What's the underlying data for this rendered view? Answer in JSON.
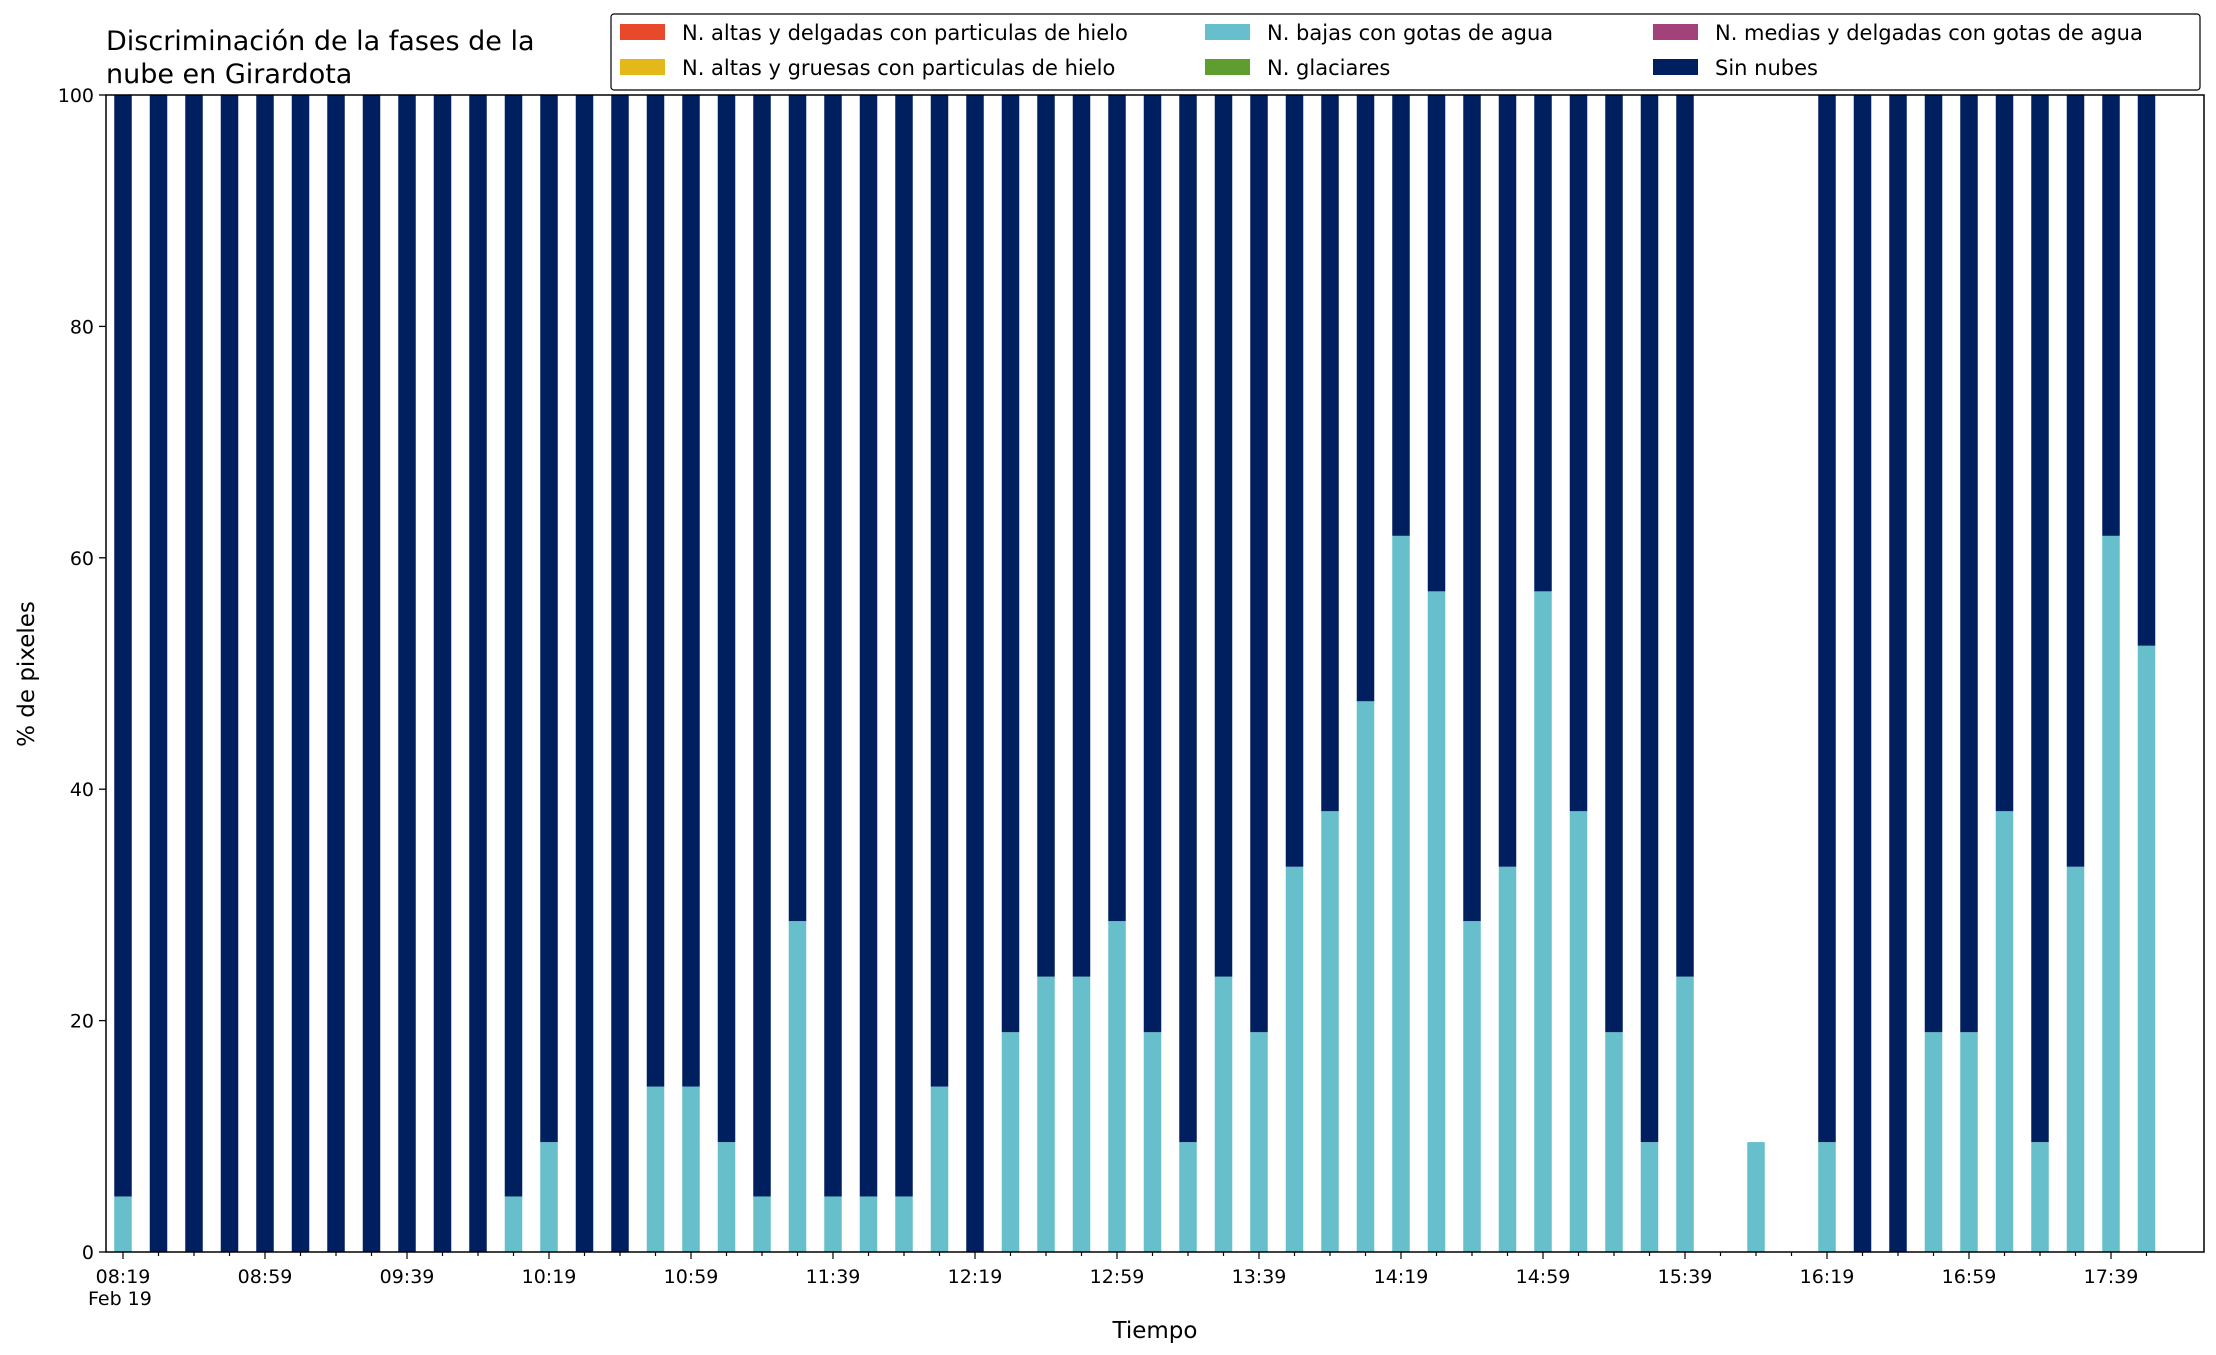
{
  "chart_data": {
    "type": "bar",
    "stacked": true,
    "title_lines": [
      "Discriminación de la fases de la",
      "nube en Girardota"
    ],
    "xlabel": "Tiempo",
    "ylabel": "% de pixeles",
    "ylim": [
      0,
      100
    ],
    "yticks": [
      0,
      20,
      40,
      60,
      80,
      100
    ],
    "x_tick_labels": [
      "08:19",
      "08:59",
      "09:39",
      "10:19",
      "10:59",
      "11:39",
      "12:19",
      "12:59",
      "13:39",
      "14:19",
      "14:59",
      "15:39",
      "16:19",
      "16:59",
      "17:39"
    ],
    "x_date_label": "Feb 19",
    "grid": false,
    "legend_position": "top-right",
    "categories": [
      "08:19",
      "08:29",
      "08:39",
      "08:49",
      "08:59",
      "09:09",
      "09:19",
      "09:29",
      "09:39",
      "09:49",
      "09:59",
      "10:09",
      "10:19",
      "10:29",
      "10:39",
      "10:49",
      "10:59",
      "11:09",
      "11:19",
      "11:29",
      "11:39",
      "11:49",
      "11:59",
      "12:09",
      "12:19",
      "12:29",
      "12:39",
      "12:49",
      "12:59",
      "13:09",
      "13:19",
      "13:29",
      "13:39",
      "13:49",
      "13:59",
      "14:09",
      "14:19",
      "14:29",
      "14:39",
      "14:49",
      "14:59",
      "15:09",
      "15:19",
      "15:29",
      "15:39",
      "15:49",
      "15:59",
      "16:09",
      "16:19",
      "16:29",
      "16:39",
      "16:49",
      "16:59",
      "17:09",
      "17:19",
      "17:29",
      "17:39",
      "17:49"
    ],
    "series": [
      {
        "name": "N. altas y delgadas con particulas de hielo",
        "color": "#e8482b",
        "values": [
          0,
          0,
          0,
          0,
          0,
          0,
          0,
          0,
          0,
          0,
          0,
          0,
          0,
          0,
          0,
          0,
          0,
          0,
          0,
          0,
          0,
          0,
          0,
          0,
          0,
          0,
          0,
          0,
          0,
          0,
          0,
          0,
          0,
          0,
          0,
          0,
          0,
          0,
          0,
          0,
          0,
          0,
          0,
          0,
          0,
          0,
          0,
          0,
          0,
          0,
          0,
          0,
          0,
          0,
          0,
          0,
          0,
          0
        ]
      },
      {
        "name": "N. altas y gruesas con particulas de hielo",
        "color": "#e5b81a",
        "values": [
          0,
          0,
          0,
          0,
          0,
          0,
          0,
          0,
          0,
          0,
          0,
          0,
          0,
          0,
          0,
          0,
          0,
          0,
          0,
          0,
          0,
          0,
          0,
          0,
          0,
          0,
          0,
          0,
          0,
          0,
          0,
          0,
          0,
          0,
          0,
          0,
          0,
          0,
          0,
          0,
          0,
          0,
          0,
          0,
          0,
          0,
          0,
          0,
          0,
          0,
          0,
          0,
          0,
          0,
          0,
          0,
          0,
          0
        ]
      },
      {
        "name": "N. bajas con gotas de agua",
        "color": "#66bfcb",
        "values": [
          4.8,
          0,
          0,
          0,
          0,
          0,
          0,
          0,
          0,
          0,
          0,
          4.8,
          9.5,
          0,
          0,
          14.3,
          14.3,
          9.5,
          4.8,
          28.6,
          4.8,
          4.8,
          4.8,
          14.3,
          0,
          19.0,
          23.8,
          23.8,
          28.6,
          19.0,
          9.5,
          23.8,
          19.0,
          33.3,
          38.1,
          47.6,
          61.9,
          57.1,
          28.6,
          33.3,
          57.1,
          38.1,
          19.0,
          9.5,
          23.8,
          null,
          9.5,
          null,
          9.5,
          0,
          0,
          19.0,
          19.0,
          38.1,
          9.5,
          33.3,
          61.9,
          52.4
        ]
      },
      {
        "name": "N. glaciares",
        "color": "#5e9e30",
        "values": [
          0,
          0,
          0,
          0,
          0,
          0,
          0,
          0,
          0,
          0,
          0,
          0,
          0,
          0,
          0,
          0,
          0,
          0,
          0,
          0,
          0,
          0,
          0,
          0,
          0,
          0,
          0,
          0,
          0,
          0,
          0,
          0,
          0,
          0,
          0,
          0,
          0,
          0,
          0,
          0,
          0,
          0,
          0,
          0,
          0,
          0,
          0,
          0,
          0,
          0,
          0,
          0,
          0,
          0,
          0,
          0,
          0,
          0
        ]
      },
      {
        "name": "N. medias y delgadas con gotas de agua",
        "color": "#a3427a",
        "values": [
          0,
          0,
          0,
          0,
          0,
          0,
          0,
          0,
          0,
          0,
          0,
          0,
          0,
          0,
          0,
          0,
          0,
          0,
          0,
          0,
          0,
          0,
          0,
          0,
          0,
          0,
          0,
          0,
          0,
          0,
          0,
          0,
          0,
          0,
          0,
          0,
          0,
          0,
          0,
          0,
          0,
          0,
          0,
          0,
          0,
          0,
          0,
          0,
          0,
          0,
          0,
          0,
          0,
          0,
          0,
          0,
          0,
          0
        ]
      },
      {
        "name": "Sin nubes",
        "color": "#001f5f",
        "values": [
          95.2,
          100,
          100,
          100,
          100,
          100,
          100,
          100,
          100,
          100,
          100,
          95.2,
          90.5,
          100,
          100,
          85.7,
          85.7,
          90.5,
          95.2,
          71.4,
          95.2,
          95.2,
          95.2,
          85.7,
          100,
          81.0,
          76.2,
          76.2,
          71.4,
          81.0,
          90.5,
          76.2,
          81.0,
          66.7,
          61.9,
          52.4,
          38.1,
          42.9,
          71.4,
          66.7,
          42.9,
          61.9,
          81.0,
          90.5,
          76.2,
          null,
          0,
          null,
          90.5,
          100,
          100,
          81.0,
          81.0,
          61.9,
          90.5,
          66.7,
          38.1,
          47.6
        ]
      }
    ]
  }
}
